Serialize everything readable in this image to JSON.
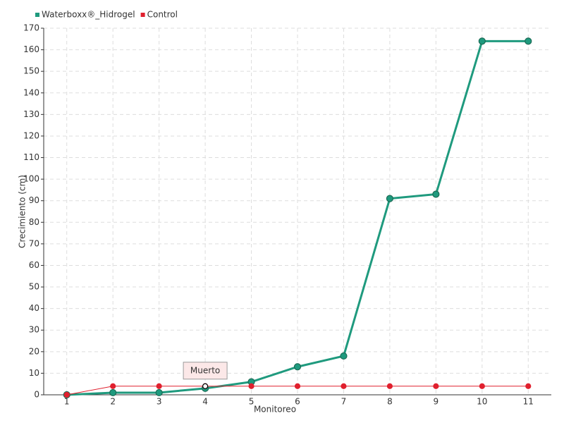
{
  "chart_data": {
    "type": "line",
    "x_label": "Monitoreo",
    "y_label": "Crecimiento (cm)",
    "categories": [
      "1",
      "2",
      "3",
      "4",
      "5",
      "6",
      "7",
      "8",
      "9",
      "10",
      "11"
    ],
    "series": [
      {
        "name": "Waterboxx®_Hidrogel",
        "color": "#1f9a7e",
        "values": [
          0,
          1,
          1,
          3,
          6,
          13,
          18,
          91,
          93,
          164,
          164
        ]
      },
      {
        "name": "Control",
        "color": "#e0202e",
        "values": [
          0,
          4,
          4,
          4,
          4,
          4,
          4,
          4,
          4,
          4,
          4
        ]
      }
    ],
    "annotation": "Muerto",
    "ylim": [
      0,
      170
    ],
    "yticks": [
      0,
      10,
      20,
      30,
      40,
      50,
      60,
      70,
      80,
      90,
      100,
      110,
      120,
      130,
      140,
      150,
      160,
      170
    ],
    "grid": true,
    "legend": "top-left"
  }
}
